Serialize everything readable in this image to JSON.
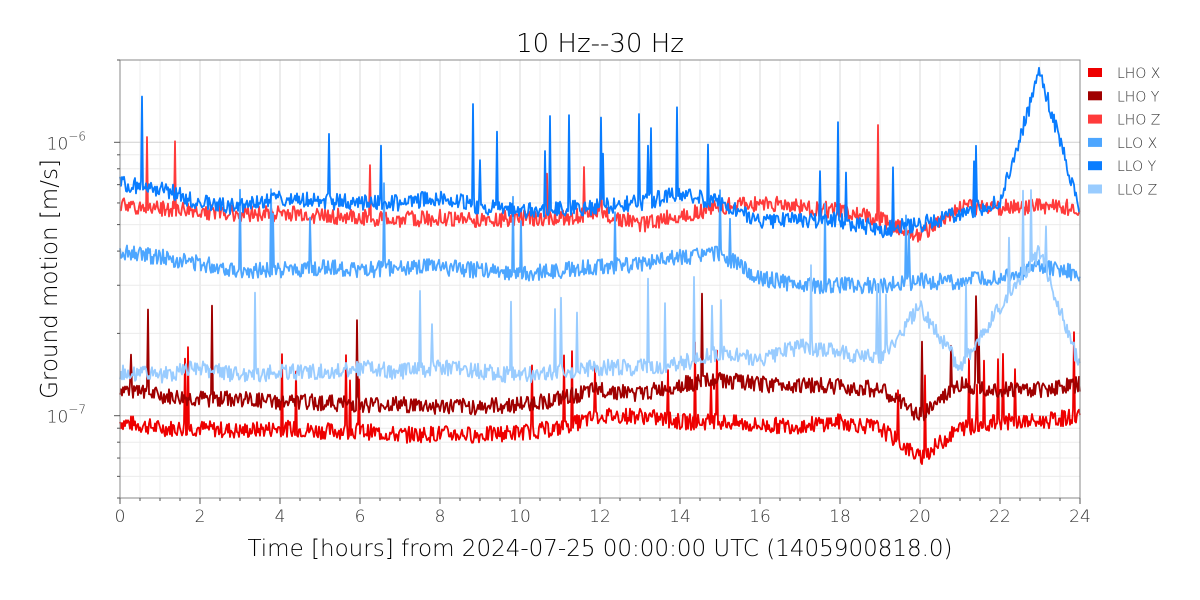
{
  "chart_data": {
    "type": "line",
    "title": "10 Hz--30 Hz",
    "xlabel": "Time [hours] from 2024-07-25 00:00:00 UTC (1405900818.0)",
    "ylabel": "Ground motion [m/s]",
    "xlim": [
      0,
      24
    ],
    "ylim": [
      5e-08,
      2e-06
    ],
    "yscale": "log",
    "grid": true,
    "legend_position": "outside-top-right",
    "xticks": [
      "0",
      "2",
      "4",
      "6",
      "8",
      "10",
      "12",
      "14",
      "16",
      "18",
      "20",
      "22",
      "24"
    ],
    "yticks": [
      {
        "value": 1e-06,
        "base": "10",
        "exp": "−6"
      },
      {
        "value": 1e-07,
        "base": "10",
        "exp": "−7"
      }
    ],
    "x": [
      0,
      1,
      2,
      3,
      4,
      5,
      6,
      7,
      8,
      9,
      10,
      11,
      12,
      13,
      14,
      15,
      16,
      17,
      18,
      19,
      20,
      21,
      22,
      23,
      24
    ],
    "series": [
      {
        "name": "LHO X",
        "color": "#ee0000",
        "values": [
          9.5e-08,
          9e-08,
          9e-08,
          8.8e-08,
          9e-08,
          8.8e-08,
          8.8e-08,
          8.5e-08,
          8.6e-08,
          8.5e-08,
          8.7e-08,
          9e-08,
          1e-07,
          1e-07,
          9.5e-08,
          9.5e-08,
          9.2e-08,
          9.2e-08,
          9.5e-08,
          9e-08,
          7e-08,
          9e-08,
          9.5e-08,
          9.5e-08,
          1e-07
        ]
      },
      {
        "name": "LHO Y",
        "color": "#a00000",
        "values": [
          1.25e-07,
          1.18e-07,
          1.15e-07,
          1.15e-07,
          1.12e-07,
          1.12e-07,
          1.1e-07,
          1.1e-07,
          1.08e-07,
          1.08e-07,
          1.1e-07,
          1.15e-07,
          1.25e-07,
          1.2e-07,
          1.3e-07,
          1.35e-07,
          1.3e-07,
          1.3e-07,
          1.28e-07,
          1.25e-07,
          1e-07,
          1.3e-07,
          1.25e-07,
          1.25e-07,
          1.3e-07
        ]
      },
      {
        "name": "LHO Z",
        "color": "#ff3b3b",
        "values": [
          5.9e-07,
          5.7e-07,
          5.6e-07,
          5.5e-07,
          5.5e-07,
          5.4e-07,
          5.3e-07,
          5.2e-07,
          5.3e-07,
          5.2e-07,
          5.3e-07,
          5.3e-07,
          5.5e-07,
          5e-07,
          5.4e-07,
          5.8e-07,
          6e-07,
          5.8e-07,
          5.6e-07,
          5.2e-07,
          4.6e-07,
          5.8e-07,
          5.8e-07,
          5.8e-07,
          5.8e-07
        ]
      },
      {
        "name": "LLO X",
        "color": "#4da6ff",
        "values": [
          4e-07,
          3.8e-07,
          3.6e-07,
          3.4e-07,
          3.4e-07,
          3.5e-07,
          3.4e-07,
          3.5e-07,
          3.5e-07,
          3.4e-07,
          3.3e-07,
          3.4e-07,
          3.5e-07,
          3.6e-07,
          3.8e-07,
          3.9e-07,
          3.2e-07,
          3e-07,
          3e-07,
          3e-07,
          3.1e-07,
          3.1e-07,
          3.2e-07,
          3.5e-07,
          3.3e-07
        ]
      },
      {
        "name": "LLO Y",
        "color": "#0a7dff",
        "values": [
          7e-07,
          6.8e-07,
          6e-07,
          5.8e-07,
          6.2e-07,
          6.1e-07,
          6e-07,
          6e-07,
          6.3e-07,
          5.8e-07,
          5.6e-07,
          5.7e-07,
          5.8e-07,
          6e-07,
          6.5e-07,
          6e-07,
          5.2e-07,
          5.2e-07,
          5.2e-07,
          4.8e-07,
          5e-07,
          5.5e-07,
          6e-07,
          1.8e-06,
          5.7e-07
        ]
      },
      {
        "name": "LLO Z",
        "color": "#99ccff",
        "values": [
          1.45e-07,
          1.4e-07,
          1.5e-07,
          1.4e-07,
          1.45e-07,
          1.45e-07,
          1.5e-07,
          1.45e-07,
          1.5e-07,
          1.45e-07,
          1.4e-07,
          1.45e-07,
          1.5e-07,
          1.5e-07,
          1.55e-07,
          1.7e-07,
          1.6e-07,
          1.8e-07,
          1.7e-07,
          1.6e-07,
          2.5e-07,
          1.5e-07,
          2.5e-07,
          4e-07,
          1.5e-07
        ]
      }
    ]
  }
}
